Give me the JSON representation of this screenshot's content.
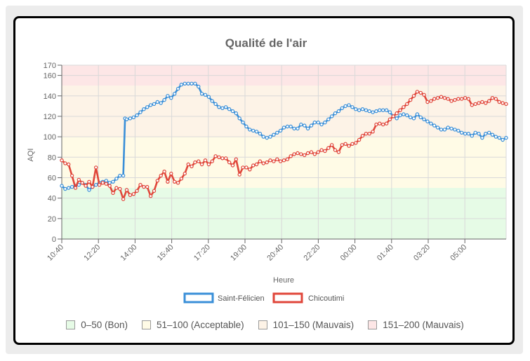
{
  "chart_data": {
    "type": "line",
    "title": "Qualité de l'air",
    "xlabel": "Heure",
    "ylabel": "AQI",
    "ylim": [
      0,
      170
    ],
    "yticks": [
      0,
      20,
      40,
      60,
      80,
      100,
      120,
      140,
      160,
      170
    ],
    "xticks": [
      "10:40",
      "12:20",
      "14:00",
      "15:40",
      "17:20",
      "19:00",
      "20:40",
      "22:20",
      "00:00",
      "01:40",
      "03:20",
      "05:00"
    ],
    "grid": true,
    "legend_position": "bottom",
    "bands": [
      {
        "label": "0–50 (Bon)",
        "from": 0,
        "to": 50,
        "color": "#e6fbe6"
      },
      {
        "label": "51–100 (Acceptable)",
        "from": 50,
        "to": 100,
        "color": "#fffbe6"
      },
      {
        "label": "101–150 (Mauvais)",
        "from": 100,
        "to": 150,
        "color": "#fdf3e7"
      },
      {
        "label": "151–200 (Mauvais)",
        "from": 150,
        "to": 170,
        "color": "#fde6e6"
      }
    ],
    "series": [
      {
        "name": "Saint-Félicien",
        "color": "#3a8fd8",
        "points": [
          [
            0,
            52
          ],
          [
            2,
            49
          ],
          [
            4,
            50
          ],
          [
            6,
            51
          ],
          [
            8,
            52
          ],
          [
            10,
            53
          ],
          [
            12,
            55
          ],
          [
            14,
            53
          ],
          [
            16,
            48
          ],
          [
            18,
            51
          ],
          [
            20,
            53
          ],
          [
            22,
            55
          ],
          [
            24,
            56
          ],
          [
            26,
            57
          ],
          [
            28,
            55
          ],
          [
            30,
            56
          ],
          [
            32,
            59
          ],
          [
            34,
            62
          ],
          [
            36,
            62
          ],
          [
            37,
            118
          ],
          [
            38,
            117
          ],
          [
            40,
            118
          ],
          [
            42,
            119
          ],
          [
            44,
            121
          ],
          [
            46,
            124
          ],
          [
            48,
            127
          ],
          [
            50,
            129
          ],
          [
            52,
            131
          ],
          [
            54,
            132
          ],
          [
            56,
            134
          ],
          [
            58,
            133
          ],
          [
            60,
            136
          ],
          [
            62,
            140
          ],
          [
            64,
            138
          ],
          [
            66,
            142
          ],
          [
            68,
            147
          ],
          [
            70,
            151
          ],
          [
            72,
            152
          ],
          [
            74,
            152
          ],
          [
            76,
            152
          ],
          [
            78,
            152
          ],
          [
            80,
            149
          ],
          [
            82,
            142
          ],
          [
            84,
            141
          ],
          [
            86,
            139
          ],
          [
            88,
            135
          ],
          [
            90,
            132
          ],
          [
            92,
            129
          ],
          [
            94,
            128
          ],
          [
            96,
            129
          ],
          [
            98,
            127
          ],
          [
            100,
            125
          ],
          [
            102,
            123
          ],
          [
            104,
            118
          ],
          [
            106,
            114
          ],
          [
            108,
            110
          ],
          [
            110,
            107
          ],
          [
            112,
            106
          ],
          [
            114,
            105
          ],
          [
            116,
            103
          ],
          [
            118,
            100
          ],
          [
            120,
            99
          ],
          [
            122,
            100
          ],
          [
            124,
            102
          ],
          [
            126,
            104
          ],
          [
            128,
            106
          ],
          [
            130,
            109
          ],
          [
            132,
            110
          ],
          [
            134,
            110
          ],
          [
            136,
            108
          ],
          [
            138,
            108
          ],
          [
            140,
            112
          ],
          [
            142,
            111
          ],
          [
            144,
            108
          ],
          [
            146,
            111
          ],
          [
            148,
            114
          ],
          [
            150,
            114
          ],
          [
            152,
            112
          ],
          [
            154,
            114
          ],
          [
            156,
            117
          ],
          [
            158,
            120
          ],
          [
            160,
            123
          ],
          [
            162,
            125
          ],
          [
            164,
            128
          ],
          [
            166,
            130
          ],
          [
            168,
            131
          ],
          [
            170,
            129
          ],
          [
            172,
            127
          ],
          [
            174,
            126
          ],
          [
            176,
            127
          ],
          [
            178,
            126
          ],
          [
            180,
            125
          ],
          [
            182,
            124
          ],
          [
            184,
            125
          ],
          [
            186,
            126
          ],
          [
            188,
            126
          ],
          [
            190,
            126
          ],
          [
            192,
            124
          ],
          [
            194,
            120
          ],
          [
            196,
            118
          ],
          [
            198,
            121
          ],
          [
            200,
            122
          ],
          [
            202,
            121
          ],
          [
            204,
            119
          ],
          [
            206,
            118
          ],
          [
            208,
            122
          ],
          [
            210,
            119
          ],
          [
            212,
            117
          ],
          [
            214,
            115
          ],
          [
            216,
            113
          ],
          [
            218,
            111
          ],
          [
            220,
            109
          ],
          [
            222,
            107
          ],
          [
            224,
            107
          ],
          [
            226,
            109
          ],
          [
            228,
            108
          ],
          [
            230,
            107
          ],
          [
            232,
            106
          ],
          [
            234,
            104
          ],
          [
            236,
            103
          ],
          [
            238,
            103
          ],
          [
            240,
            101
          ],
          [
            242,
            104
          ],
          [
            244,
            103
          ],
          [
            246,
            99
          ],
          [
            248,
            103
          ],
          [
            250,
            104
          ],
          [
            252,
            102
          ],
          [
            254,
            100
          ],
          [
            256,
            99
          ],
          [
            258,
            97
          ],
          [
            260,
            99
          ]
        ]
      },
      {
        "name": "Chicoutimi",
        "color": "#e0463a",
        "points": [
          [
            0,
            77
          ],
          [
            2,
            74
          ],
          [
            4,
            73
          ],
          [
            6,
            62
          ],
          [
            8,
            50
          ],
          [
            10,
            58
          ],
          [
            12,
            55
          ],
          [
            14,
            52
          ],
          [
            16,
            56
          ],
          [
            18,
            51
          ],
          [
            20,
            70
          ],
          [
            22,
            53
          ],
          [
            24,
            55
          ],
          [
            26,
            54
          ],
          [
            28,
            52
          ],
          [
            30,
            45
          ],
          [
            32,
            50
          ],
          [
            34,
            49
          ],
          [
            36,
            39
          ],
          [
            38,
            48
          ],
          [
            40,
            43
          ],
          [
            42,
            44
          ],
          [
            44,
            47
          ],
          [
            46,
            53
          ],
          [
            48,
            51
          ],
          [
            50,
            51
          ],
          [
            52,
            42
          ],
          [
            54,
            47
          ],
          [
            56,
            57
          ],
          [
            58,
            62
          ],
          [
            60,
            66
          ],
          [
            62,
            56
          ],
          [
            64,
            64
          ],
          [
            66,
            56
          ],
          [
            68,
            55
          ],
          [
            70,
            59
          ],
          [
            72,
            64
          ],
          [
            74,
            73
          ],
          [
            76,
            71
          ],
          [
            78,
            75
          ],
          [
            80,
            76
          ],
          [
            82,
            73
          ],
          [
            84,
            77
          ],
          [
            86,
            73
          ],
          [
            88,
            76
          ],
          [
            90,
            81
          ],
          [
            92,
            80
          ],
          [
            94,
            79
          ],
          [
            96,
            79
          ],
          [
            98,
            75
          ],
          [
            100,
            72
          ],
          [
            102,
            78
          ],
          [
            104,
            63
          ],
          [
            106,
            70
          ],
          [
            108,
            70
          ],
          [
            110,
            68
          ],
          [
            112,
            72
          ],
          [
            114,
            73
          ],
          [
            116,
            76
          ],
          [
            118,
            74
          ],
          [
            120,
            75
          ],
          [
            122,
            77
          ],
          [
            124,
            76
          ],
          [
            126,
            78
          ],
          [
            128,
            76
          ],
          [
            130,
            77
          ],
          [
            132,
            78
          ],
          [
            134,
            81
          ],
          [
            136,
            83
          ],
          [
            138,
            84
          ],
          [
            140,
            83
          ],
          [
            142,
            82
          ],
          [
            144,
            84
          ],
          [
            146,
            85
          ],
          [
            148,
            83
          ],
          [
            150,
            85
          ],
          [
            152,
            87
          ],
          [
            154,
            86
          ],
          [
            156,
            89
          ],
          [
            158,
            92
          ],
          [
            160,
            87
          ],
          [
            162,
            85
          ],
          [
            164,
            92
          ],
          [
            166,
            93
          ],
          [
            168,
            91
          ],
          [
            170,
            93
          ],
          [
            172,
            94
          ],
          [
            174,
            97
          ],
          [
            176,
            101
          ],
          [
            178,
            103
          ],
          [
            180,
            103
          ],
          [
            182,
            105
          ],
          [
            184,
            112
          ],
          [
            186,
            113
          ],
          [
            188,
            112
          ],
          [
            190,
            113
          ],
          [
            192,
            117
          ],
          [
            194,
            120
          ],
          [
            196,
            123
          ],
          [
            198,
            126
          ],
          [
            200,
            129
          ],
          [
            202,
            132
          ],
          [
            204,
            136
          ],
          [
            206,
            140
          ],
          [
            208,
            144
          ],
          [
            210,
            143
          ],
          [
            212,
            141
          ],
          [
            214,
            134
          ],
          [
            216,
            135
          ],
          [
            218,
            137
          ],
          [
            220,
            138
          ],
          [
            222,
            139
          ],
          [
            224,
            138
          ],
          [
            226,
            137
          ],
          [
            228,
            135
          ],
          [
            230,
            136
          ],
          [
            232,
            137
          ],
          [
            234,
            137
          ],
          [
            236,
            138
          ],
          [
            238,
            137
          ],
          [
            240,
            131
          ],
          [
            242,
            132
          ],
          [
            244,
            133
          ],
          [
            246,
            134
          ],
          [
            248,
            133
          ],
          [
            250,
            135
          ],
          [
            252,
            138
          ],
          [
            254,
            137
          ],
          [
            256,
            134
          ],
          [
            258,
            133
          ],
          [
            260,
            132
          ]
        ]
      }
    ]
  }
}
